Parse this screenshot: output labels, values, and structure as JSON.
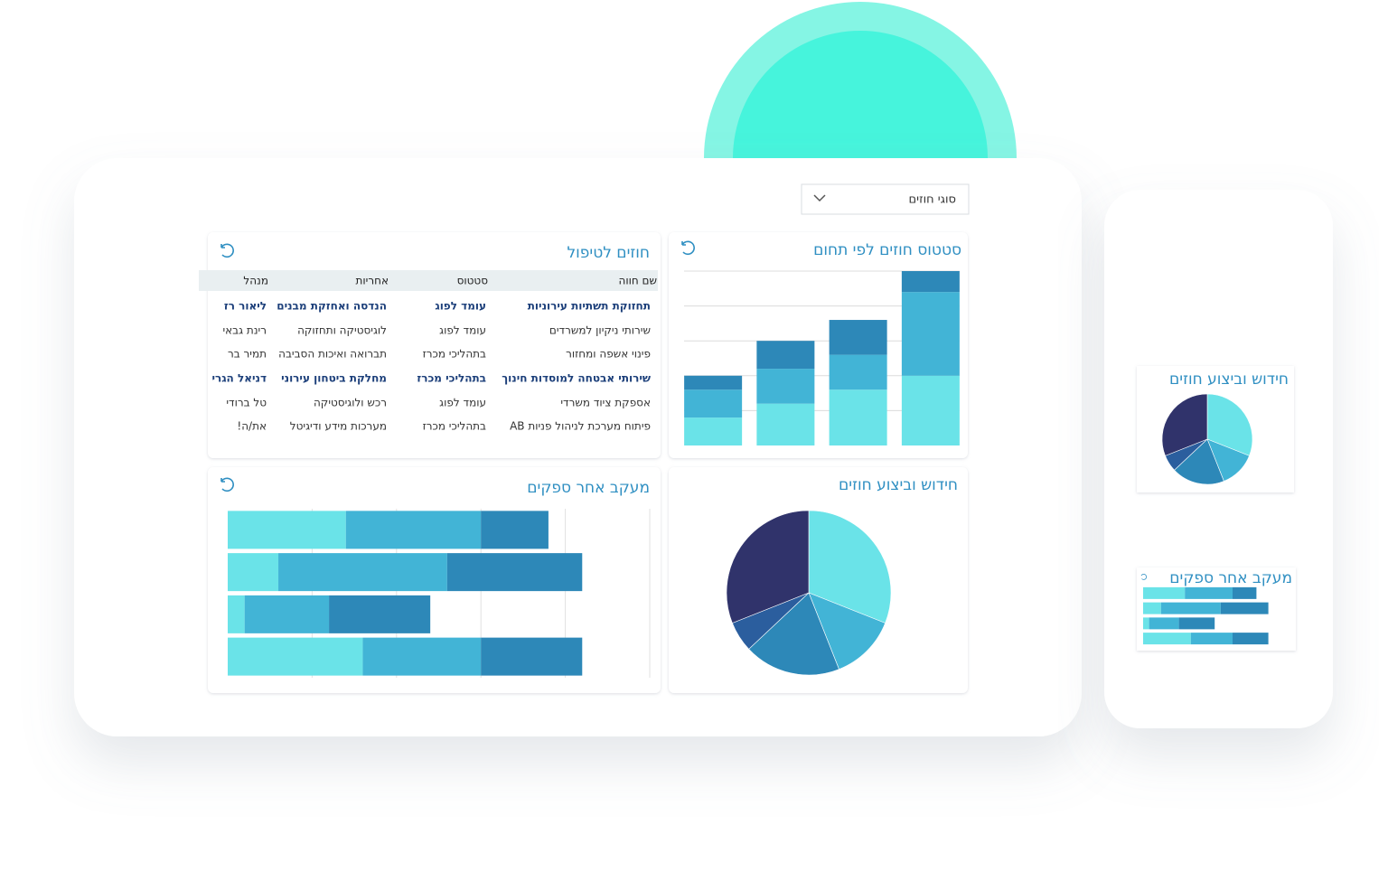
{
  "dropdown": {
    "label": "סוגי חוזים"
  },
  "table_panel": {
    "title": "חוזים לטיפול",
    "columns": [
      "שם חווה",
      "סטטוס",
      "אחריות",
      "מנהל"
    ],
    "rows": [
      [
        "תחזוקת תשתיות עירוניות",
        "עומד לפוג",
        "הנדסה ואחזקת מבנים",
        "ליאור רז"
      ],
      [
        "שירותי ניקיון למשרדים",
        "עומד לפוג",
        "לוגיסטיקה ותחזוקה",
        "רינת גבאי"
      ],
      [
        "פינוי אשפה ומחזור",
        "בתהליכי מכרז",
        "תברואה ואיכות הסביבה",
        "תמיר בר"
      ],
      [
        "שירותי אבטחה למוסדות חינוך",
        "בתהליכי מכרז",
        "מחלקת ביטחון עירוני",
        "דניאל הגרי"
      ],
      [
        "אספקת ציוד משרדי",
        "עומד לפוג",
        "רכש ולוגיסטיקה",
        "טל ברודי"
      ],
      [
        "פיתוח מערכת לניהול פניות AB",
        "בתהליכי מכרז",
        "מערכות מידע ודיגיטל",
        "את/ה!"
      ]
    ],
    "bold_rows": [
      0,
      3
    ]
  },
  "status_chart": {
    "type": "bar",
    "title": "סטטוס חוזים לפי תחום",
    "ylim": [
      0,
      5
    ],
    "gridlines": [
      1,
      2,
      3,
      4,
      5
    ],
    "series": [
      {
        "color": "#6ae3e8",
        "values": [
          0.8,
          1.2,
          1.6,
          2.0
        ]
      },
      {
        "color": "#42b4d6",
        "values": [
          0.8,
          1.0,
          1.0,
          2.4
        ]
      },
      {
        "color": "#2d88b8",
        "values": [
          0.4,
          0.8,
          1.0,
          0.6
        ]
      }
    ]
  },
  "pie_chart": {
    "type": "pie",
    "title": "חידוש וביצוע חוזים",
    "values": [
      31,
      13,
      19,
      6,
      31
    ],
    "colors": [
      "#6ae3e8",
      "#42b4d6",
      "#2d88b8",
      "#2b5e9e",
      "#30336b"
    ]
  },
  "supplier_chart": {
    "type": "hbar",
    "title": "מעקב אחר ספקים",
    "xlim": [
      0,
      5
    ],
    "gridlines": [
      1,
      2,
      3,
      4,
      5
    ],
    "series": [
      {
        "color": "#6ae3e8",
        "values": [
          1.4,
          0.6,
          0.2,
          1.6
        ]
      },
      {
        "color": "#42b4d6",
        "values": [
          1.6,
          2.0,
          1.0,
          1.4
        ]
      },
      {
        "color": "#2d88b8",
        "values": [
          0.8,
          1.6,
          1.2,
          1.2
        ]
      }
    ]
  }
}
